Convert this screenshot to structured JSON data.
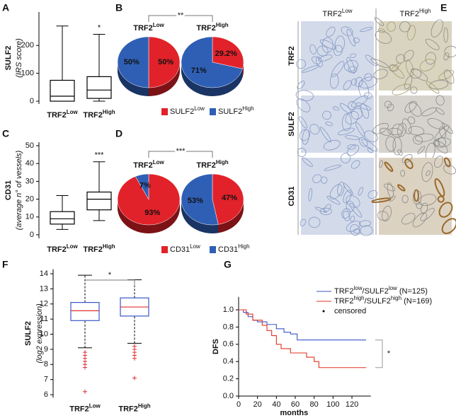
{
  "chart_data": [
    {
      "type": "box",
      "panel": "A",
      "ylabel": "SULF2",
      "ylabel_sub": "(IRS score)",
      "categories": [
        [
          "TRF2",
          "Low"
        ],
        [
          "TRF2",
          "High"
        ]
      ],
      "boxes": [
        {
          "whisker_low": 0,
          "q1": 0,
          "median": 18,
          "q3": 75,
          "whisker_high": 270,
          "outliers": []
        },
        {
          "whisker_low": 0,
          "q1": 10,
          "median": 40,
          "q3": 88,
          "whisker_high": 240,
          "outliers": []
        }
      ],
      "ylim": [
        -10,
        320
      ],
      "yticks": [
        0,
        100,
        200
      ],
      "annotation": "*",
      "box_color": "#000000",
      "median_color": "#000000",
      "outlier_color": "#000000"
    },
    {
      "type": "pie",
      "panel": "B",
      "annotation": "**",
      "pies": [
        {
          "title": [
            "TRF2",
            "Low"
          ],
          "values": [
            50,
            50
          ],
          "value_labels": [
            "50%",
            "50%"
          ]
        },
        {
          "title": [
            "TRF2",
            "High"
          ],
          "values": [
            29.2,
            71
          ],
          "value_labels": [
            "29.2%",
            "71%"
          ]
        }
      ],
      "series_names": [
        [
          "SULF2",
          "Low"
        ],
        [
          "SULF2",
          "High"
        ]
      ],
      "colors": [
        "#e2222a",
        "#2f5fb5"
      ]
    },
    {
      "type": "box",
      "panel": "C",
      "ylabel": "CD31",
      "ylabel_sub": "(average n° of vessels)",
      "categories": [
        [
          "TRF2",
          "Low"
        ],
        [
          "TRF2",
          "High"
        ]
      ],
      "boxes": [
        {
          "whisker_low": 3,
          "q1": 6,
          "median": 9,
          "q3": 13,
          "whisker_high": 22,
          "outliers": []
        },
        {
          "whisker_low": 8,
          "q1": 14,
          "median": 20,
          "q3": 24,
          "whisker_high": 41,
          "outliers": []
        }
      ],
      "ylim": [
        -2,
        52
      ],
      "yticks": [
        0,
        10,
        20,
        30,
        40,
        50
      ],
      "annotation": "***",
      "box_color": "#000000",
      "median_color": "#000000",
      "outlier_color": "#000000"
    },
    {
      "type": "pie",
      "panel": "D",
      "annotation": "***",
      "pies": [
        {
          "title": [
            "TRF2",
            "Low"
          ],
          "values": [
            93,
            7
          ],
          "value_labels": [
            "93%",
            "7%"
          ]
        },
        {
          "title": [
            "TRF2",
            "High"
          ],
          "values": [
            47,
            53
          ],
          "value_labels": [
            "47%",
            "53%"
          ]
        }
      ],
      "series_names": [
        [
          "CD31",
          "Low"
        ],
        [
          "CD31",
          "High"
        ]
      ],
      "colors": [
        "#e2222a",
        "#2f5fb5"
      ]
    },
    {
      "type": "box",
      "panel": "F",
      "ylabel": "SULF2",
      "ylabel_sub": "(log2 expression)",
      "categories": [
        [
          "TRF2",
          "Low"
        ],
        [
          "TRF2",
          "High"
        ]
      ],
      "boxes": [
        {
          "whisker_low": 9.1,
          "q1": 10.9,
          "median": 11.55,
          "q3": 12.1,
          "whisker_high": 13.9,
          "outliers": [
            8.8,
            8.6,
            8.4,
            8.2,
            8.0,
            7.8,
            6.2
          ]
        },
        {
          "whisker_low": 9.4,
          "q1": 11.2,
          "median": 11.8,
          "q3": 12.4,
          "whisker_high": 13.6,
          "outliers": [
            9.2,
            9.0,
            8.8,
            8.6,
            8.4,
            7.1
          ]
        }
      ],
      "ylim": [
        5.8,
        14.3
      ],
      "yticks": [
        6,
        7,
        8,
        9,
        10,
        11,
        12,
        13,
        14
      ],
      "annotation": "*",
      "box_color": "#3a56c8",
      "median_color": "#e03030",
      "outlier_color": "#e03030"
    },
    {
      "type": "km",
      "panel": "G",
      "xlabel": "months",
      "ylabel": "DFS",
      "annotation": "*",
      "xlim": [
        0,
        140
      ],
      "xticks": [
        0,
        20,
        40,
        60,
        80,
        100,
        120
      ],
      "ylim": [
        0,
        1.15
      ],
      "yticks": [
        {
          "value": 0,
          "label": "0.0"
        },
        {
          "value": 0.2,
          "label": "0.2"
        },
        {
          "value": 0.4,
          "label": "0.4"
        },
        {
          "value": 0.6,
          "label": "0.6"
        },
        {
          "value": 0.8,
          "label": "0.8"
        },
        {
          "value": 1,
          "label": "1.0"
        }
      ],
      "series": [
        {
          "name": [
            "TRF2",
            "low",
            "/SULF2",
            "low",
            " (N=125)"
          ],
          "color": "#3a56c8",
          "x": [
            0,
            5,
            10,
            15,
            20,
            30,
            40,
            48,
            55,
            62,
            135
          ],
          "values": [
            1,
            0.97,
            0.92,
            0.88,
            0.86,
            0.83,
            0.78,
            0.74,
            0.72,
            0.65,
            0.65
          ]
        },
        {
          "name": [
            "TRF2",
            "high",
            "/SULF2",
            "high",
            " (N=169)"
          ],
          "color": "#e03020",
          "x": [
            0,
            8,
            15,
            25,
            30,
            35,
            40,
            45,
            55,
            65,
            72,
            80,
            85,
            135
          ],
          "values": [
            1,
            0.95,
            0.88,
            0.82,
            0.76,
            0.7,
            0.6,
            0.55,
            0.5,
            0.5,
            0.45,
            0.4,
            0.33,
            0.33
          ]
        }
      ],
      "censored_label": "censored"
    }
  ],
  "image_panel": {
    "panel": "E",
    "columns": [
      [
        "TRF2",
        "Low"
      ],
      [
        "TRF2",
        "High"
      ]
    ],
    "rows": [
      "TRF2",
      "SULF2",
      "CD31"
    ]
  }
}
